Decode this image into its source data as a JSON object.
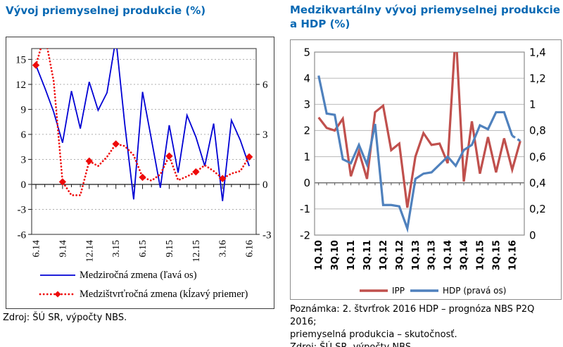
{
  "left_panel": {
    "title": "Vývoj priemyselnej produkcie (%)",
    "source": "Zdroj: ŠÚ SR, výpočty NBS."
  },
  "right_panel": {
    "title": "Medzikvartálny vývoj priemyselnej produkcie a HDP (%)",
    "note_lines": [
      "Poznámka: 2. štvrťrok 2016 HDP – prognóza NBS P2Q 2016;",
      "priemyselná produkcia – skutočnosť.",
      "Zdroj: ŠÚ SR, výpočty NBS."
    ]
  },
  "chart_data": [
    {
      "type": "line",
      "title": "Vývoj priemyselnej produkcie (%)",
      "x_tick_labels": [
        "6.14",
        "9.14",
        "12.14",
        "3.15",
        "6.15",
        "9.15",
        "12.15",
        "3.16",
        "6.16"
      ],
      "x_label_indices": [
        0,
        3,
        6,
        9,
        12,
        15,
        18,
        21,
        24
      ],
      "n_points": 25,
      "ylim_left": [
        -6,
        16.3
      ],
      "y_ticks_left": [
        15,
        12,
        9,
        6,
        3,
        0,
        -3,
        -6
      ],
      "y_ticks_right": [
        6,
        3,
        0,
        -3
      ],
      "right_axis_factor": 2,
      "grid": "dashed",
      "series": [
        {
          "name": "Medziročná zmena (ľavá os)",
          "color": "#0000d4",
          "style": "solid",
          "axis": "left",
          "values": [
            14.3,
            11.6,
            8.7,
            5.0,
            11.2,
            6.7,
            12.3,
            8.9,
            11.0,
            17.5,
            7.2,
            -1.8,
            11.1,
            5.4,
            -0.4,
            7.1,
            1.4,
            8.3,
            5.7,
            2.2,
            7.3,
            -2.0,
            7.7,
            5.3,
            2.2
          ]
        },
        {
          "name": "Medzištvrťročná zmena (kĺzavý priemer)",
          "color": "#ee0a0a",
          "style": "dotted",
          "marker": "diamond",
          "marker_every": 3,
          "axis": "left",
          "values": [
            14.3,
            18.0,
            12.4,
            0.3,
            -1.3,
            -1.3,
            2.8,
            2.2,
            3.3,
            4.85,
            4.6,
            3.5,
            0.85,
            0.45,
            1.2,
            3.4,
            0.5,
            0.95,
            1.5,
            2.3,
            1.6,
            0.7,
            1.3,
            1.6,
            3.3
          ]
        }
      ]
    },
    {
      "type": "line",
      "title": "Medzikvartálny vývoj priemyselnej produkcie a HDP (%)",
      "x_tick_labels": [
        "1Q.10",
        "3Q.10",
        "1Q.11",
        "3Q.11",
        "1Q.12",
        "3Q.12",
        "1Q.13",
        "3Q.13",
        "1Q.14",
        "3Q.14",
        "1Q.15",
        "3Q.15",
        "1Q.16"
      ],
      "x_label_indices": [
        0,
        2,
        4,
        6,
        8,
        10,
        12,
        14,
        16,
        18,
        20,
        22,
        24
      ],
      "n_points": 26,
      "ylim_left": [
        -2,
        5
      ],
      "ylim_right": [
        0,
        1.4
      ],
      "y_ticks_left": [
        5,
        4,
        3,
        2,
        1,
        0,
        -1,
        -2
      ],
      "y_ticks_right_labels": [
        "1,4",
        "1,2",
        "1",
        "0,8",
        "0,6",
        "0,4",
        "0,2",
        "0"
      ],
      "y_ticks_right_values": [
        1.4,
        1.2,
        1,
        0.8,
        0.6,
        0.4,
        0.2,
        0
      ],
      "grid": "solid",
      "series": [
        {
          "name": "IPP",
          "color": "#c0504d",
          "style": "solid",
          "axis": "left",
          "values": [
            2.5,
            2.1,
            2.0,
            2.45,
            0.25,
            1.2,
            0.15,
            2.7,
            2.95,
            1.25,
            1.5,
            -0.95,
            1.0,
            1.9,
            1.45,
            1.5,
            0.75,
            5.8,
            0.05,
            2.35,
            0.35,
            1.75,
            0.4,
            1.7,
            0.5,
            1.6
          ]
        },
        {
          "name": "HDP (pravá os)",
          "color": "#4f81bd",
          "style": "solid",
          "axis": "right",
          "forecast_last_segment": true,
          "values": [
            1.22,
            0.93,
            0.92,
            0.58,
            0.55,
            0.69,
            0.54,
            0.85,
            0.23,
            0.23,
            0.22,
            0.05,
            0.43,
            0.47,
            0.48,
            0.54,
            0.6,
            0.53,
            0.65,
            0.69,
            0.84,
            0.81,
            0.94,
            0.94,
            0.76,
            0.72
          ]
        }
      ]
    }
  ]
}
